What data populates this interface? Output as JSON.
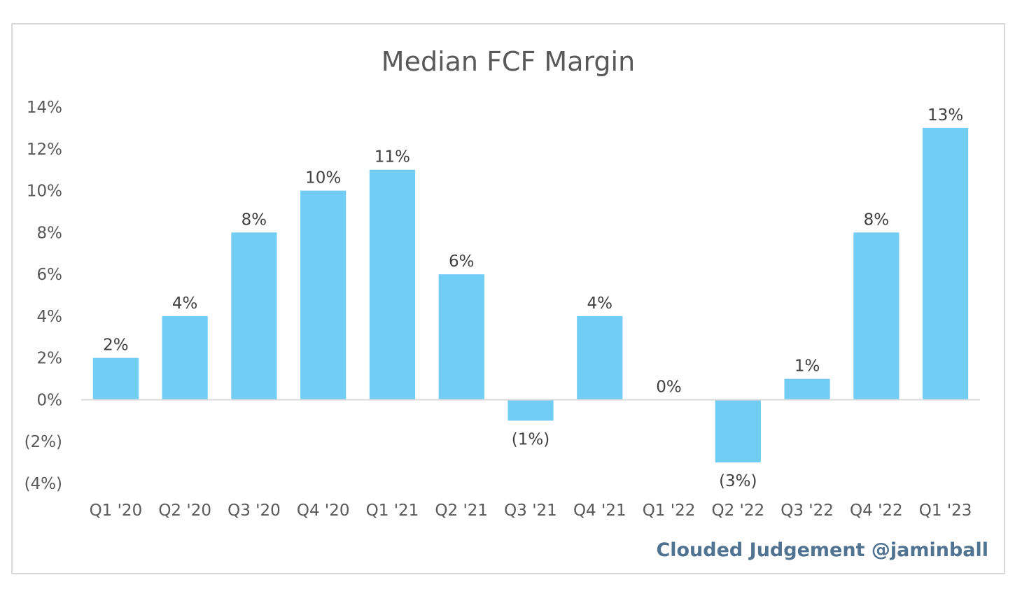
{
  "chart_data": {
    "type": "bar",
    "title": "Median FCF Margin",
    "xlabel": "",
    "ylabel": "",
    "categories": [
      "Q1 '20",
      "Q2 '20",
      "Q3 '20",
      "Q4 '20",
      "Q1 '21",
      "Q2 '21",
      "Q3 '21",
      "Q4 '21",
      "Q1 '22",
      "Q2 '22",
      "Q3 '22",
      "Q4 '22",
      "Q1 '23"
    ],
    "values": [
      2,
      4,
      8,
      10,
      11,
      6,
      -1,
      4,
      0,
      -3,
      1,
      8,
      13
    ],
    "data_labels": [
      "2%",
      "4%",
      "8%",
      "10%",
      "11%",
      "6%",
      "(1%)",
      "4%",
      "0%",
      "(3%)",
      "1%",
      "8%",
      "13%"
    ],
    "ylim": [
      -4,
      14
    ],
    "y_ticks": [
      14,
      12,
      10,
      8,
      6,
      4,
      2,
      0,
      -2,
      -4
    ],
    "y_tick_labels": [
      "14%",
      "12%",
      "10%",
      "8%",
      "6%",
      "4%",
      "2%",
      "0%",
      "(2%)",
      "(4%)"
    ],
    "grid": false,
    "legend": "none",
    "bar_color": "#72cdf4",
    "axis_color": "#d9d9d9"
  },
  "watermark": "Clouded Judgement @jaminball"
}
